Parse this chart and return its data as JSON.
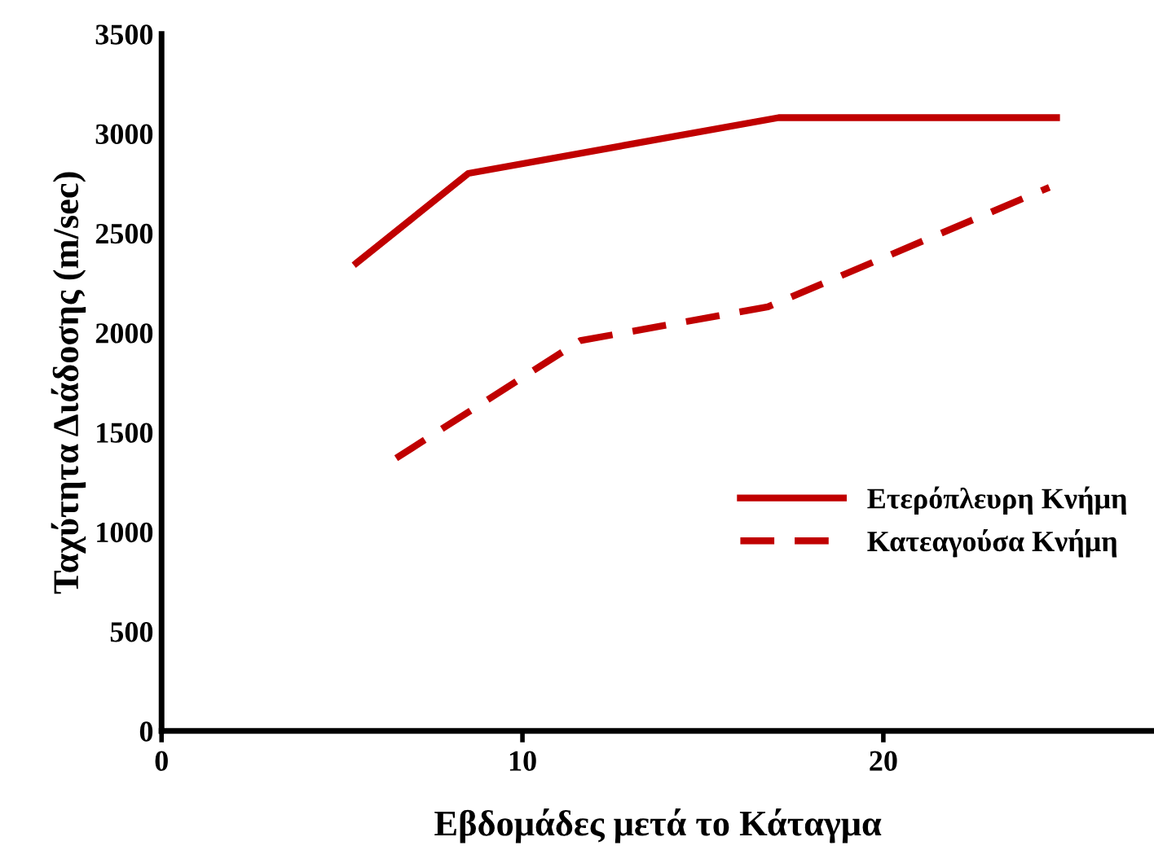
{
  "chart_data": {
    "type": "line",
    "xlabel": "Εβδομάδες μετά το Κάταγμα",
    "ylabel": "Ταχύτητα Διάδοσης (m/sec)",
    "xlim": [
      0,
      27.5
    ],
    "xticks": [
      0,
      10,
      20
    ],
    "ylim": [
      0,
      3500
    ],
    "yticks": [
      0,
      500,
      1000,
      1500,
      2000,
      2500,
      3000,
      3500
    ],
    "grid": false,
    "legend": "right",
    "marker": "none",
    "series": [
      {
        "name": "Ετερόπλευρη Κνήμη",
        "color": "#c00000",
        "line_style": "solid",
        "x": [
          5.4,
          8.5,
          17.1,
          24.8
        ],
        "values": [
          2350,
          2800,
          3080,
          3080
        ]
      },
      {
        "name": "Κατεαγούσα Κνήμη",
        "color": "#c00000",
        "line_style": "dashed",
        "x": [
          6.5,
          11.6,
          16.8,
          24.6
        ],
        "values": [
          1370,
          1960,
          2130,
          2730
        ]
      }
    ]
  }
}
